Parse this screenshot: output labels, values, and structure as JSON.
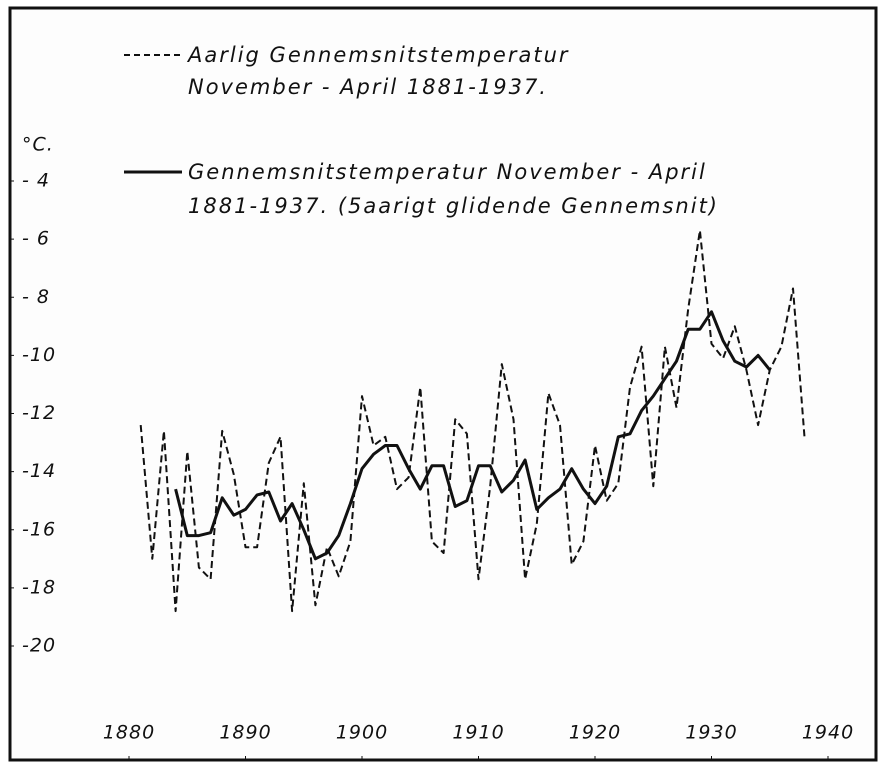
{
  "chart_data": {
    "type": "line",
    "y_axis_label": "°C.",
    "xlim": [
      1880,
      1940
    ],
    "xticks": [
      1880,
      1890,
      1900,
      1910,
      1920,
      1930,
      1940
    ],
    "ylim": [
      -20,
      -4
    ],
    "yticks": [
      {
        "value": -4,
        "label": "- 4"
      },
      {
        "value": -6,
        "label": "- 6"
      },
      {
        "value": -8,
        "label": "- 8"
      },
      {
        "value": -10,
        "label": "-10"
      },
      {
        "value": -12,
        "label": "-12"
      },
      {
        "value": -14,
        "label": "-14"
      },
      {
        "value": -16,
        "label": "-16"
      },
      {
        "value": -18,
        "label": "-18"
      },
      {
        "value": -20,
        "label": "-20"
      }
    ],
    "grid": false,
    "series": [
      {
        "name": [
          "Aarlig Gennemsnitstemperatur",
          "November - April 1881-1937."
        ],
        "color": "#111111",
        "dashed": true,
        "x": [
          1881,
          1882,
          1883,
          1884,
          1885,
          1886,
          1887,
          1888,
          1889,
          1890,
          1891,
          1892,
          1893,
          1894,
          1895,
          1896,
          1897,
          1898,
          1899,
          1900,
          1901,
          1902,
          1903,
          1904,
          1905,
          1906,
          1907,
          1908,
          1909,
          1910,
          1911,
          1912,
          1913,
          1914,
          1915,
          1916,
          1917,
          1918,
          1919,
          1920,
          1921,
          1922,
          1923,
          1924,
          1925,
          1926,
          1927,
          1928,
          1929,
          1930,
          1931,
          1932,
          1933,
          1934,
          1935,
          1936,
          1937,
          1938
        ],
        "values": [
          -12.4,
          -17.0,
          -12.6,
          -18.8,
          -13.3,
          -17.3,
          -17.7,
          -12.6,
          -14.1,
          -16.6,
          -16.6,
          -13.7,
          -12.8,
          -18.8,
          -14.4,
          -18.6,
          -16.6,
          -17.6,
          -16.4,
          -11.4,
          -13.1,
          -12.8,
          -14.6,
          -14.2,
          -11.1,
          -16.4,
          -16.8,
          -12.2,
          -12.7,
          -17.7,
          -14.5,
          -10.3,
          -12.2,
          -17.7,
          -15.8,
          -11.3,
          -12.4,
          -17.2,
          -16.4,
          -13.1,
          -15.0,
          -14.4,
          -11.1,
          -9.7,
          -14.5,
          -9.7,
          -11.8,
          -8.4,
          -5.7,
          -9.6,
          -10.1,
          -9.0,
          -10.5,
          -12.4,
          -10.5,
          -9.7,
          -7.7,
          -12.9
        ]
      },
      {
        "name": [
          "Gennemsnitstemperatur November - April",
          "1881-1937. (5aarigt glidende Gennemsnit)"
        ],
        "color": "#111111",
        "dashed": false,
        "x": [
          1884,
          1885,
          1886,
          1887,
          1888,
          1889,
          1890,
          1891,
          1892,
          1893,
          1894,
          1895,
          1896,
          1897,
          1898,
          1899,
          1900,
          1901,
          1902,
          1903,
          1904,
          1905,
          1906,
          1907,
          1908,
          1909,
          1910,
          1911,
          1912,
          1913,
          1914,
          1915,
          1916,
          1917,
          1918,
          1919,
          1920,
          1921,
          1922,
          1923,
          1924,
          1925,
          1926,
          1927,
          1928,
          1929,
          1930,
          1931,
          1932,
          1933,
          1934,
          1935
        ],
        "values": [
          -14.6,
          -16.2,
          -16.2,
          -16.1,
          -14.9,
          -15.5,
          -15.3,
          -14.8,
          -14.7,
          -15.7,
          -15.1,
          -16.0,
          -17.0,
          -16.8,
          -16.2,
          -15.1,
          -13.9,
          -13.4,
          -13.1,
          -13.1,
          -13.9,
          -14.6,
          -13.8,
          -13.8,
          -15.2,
          -15.0,
          -13.8,
          -13.8,
          -14.7,
          -14.3,
          -13.6,
          -15.3,
          -14.9,
          -14.6,
          -13.9,
          -14.6,
          -15.1,
          -14.5,
          -12.8,
          -12.7,
          -11.9,
          -11.4,
          -10.8,
          -10.2,
          -9.1,
          -9.1,
          -8.5,
          -9.5,
          -10.2,
          -10.4,
          -10.0,
          -10.5
        ]
      }
    ]
  }
}
